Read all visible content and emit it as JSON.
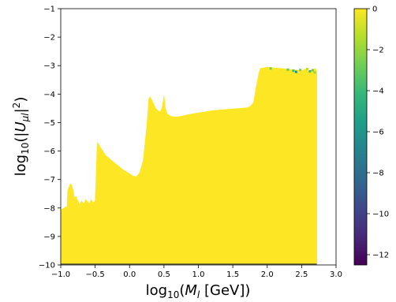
{
  "chart_data": {
    "type": "area",
    "xlim": [
      -1.0,
      3.0
    ],
    "ylim": [
      -10,
      -1
    ],
    "xticks": [
      -1.0,
      -0.5,
      0.0,
      0.5,
      1.0,
      1.5,
      2.0,
      2.5,
      3.0
    ],
    "xtick_labels": [
      "−1.0",
      "−0.5",
      "0.0",
      "0.5",
      "1.0",
      "1.5",
      "2.0",
      "2.5",
      "3.0"
    ],
    "yticks": [
      -1,
      -2,
      -3,
      -4,
      -5,
      -6,
      -7,
      -8,
      -9,
      -10
    ],
    "ytick_labels": [
      "−1",
      "−2",
      "−3",
      "−4",
      "−5",
      "−6",
      "−7",
      "−8",
      "−9",
      "−10"
    ],
    "xlabel": {
      "pre": "log",
      "sub": "10",
      "mid": "(",
      "it": "M",
      "itsub": "l",
      "post": " [GeV])"
    },
    "ylabel": {
      "pre": "log",
      "sub": "10",
      "mid": "(|",
      "it": "U",
      "itsub": "μl",
      "mid2": "|",
      "sup": "2",
      "post": ")"
    },
    "fill_color": "#fde725",
    "grid": false,
    "boundary": {
      "x": [
        -1.0,
        -0.99,
        -0.95,
        -0.93,
        -0.91,
        -0.9,
        -0.88,
        -0.86,
        -0.84,
        -0.82,
        -0.81,
        -0.8,
        -0.78,
        -0.76,
        -0.74,
        -0.72,
        -0.7,
        -0.68,
        -0.66,
        -0.64,
        -0.62,
        -0.6,
        -0.58,
        -0.56,
        -0.54,
        -0.52,
        -0.5,
        -0.49,
        -0.48,
        -0.47,
        -0.45,
        -0.43,
        -0.4,
        -0.35,
        -0.3,
        -0.25,
        -0.2,
        -0.15,
        -0.1,
        -0.05,
        0.0,
        0.05,
        0.1,
        0.15,
        0.2,
        0.25,
        0.28,
        0.3,
        0.32,
        0.35,
        0.38,
        0.4,
        0.42,
        0.45,
        0.48,
        0.5,
        0.52,
        0.55,
        0.58,
        0.6,
        0.65,
        0.7,
        0.8,
        0.9,
        1.0,
        1.1,
        1.2,
        1.3,
        1.4,
        1.5,
        1.6,
        1.7,
        1.75,
        1.8,
        1.82,
        1.85,
        1.88,
        1.9,
        1.95,
        2.0,
        2.1,
        2.2,
        2.3,
        2.4,
        2.5,
        2.55,
        2.6,
        2.65,
        2.7,
        2.72
      ],
      "y": [
        -8.1,
        -8.05,
        -8.0,
        -7.95,
        -8.0,
        -7.4,
        -7.25,
        -7.15,
        -7.2,
        -7.4,
        -7.55,
        -7.65,
        -7.6,
        -7.7,
        -7.8,
        -7.9,
        -7.75,
        -7.8,
        -7.85,
        -7.7,
        -7.75,
        -7.8,
        -7.85,
        -7.7,
        -7.78,
        -7.8,
        -7.75,
        -7.1,
        -6.4,
        -5.7,
        -5.75,
        -5.85,
        -5.95,
        -6.15,
        -6.25,
        -6.35,
        -6.45,
        -6.55,
        -6.65,
        -6.72,
        -6.8,
        -6.88,
        -6.9,
        -6.75,
        -6.3,
        -5.1,
        -4.15,
        -4.1,
        -4.2,
        -4.35,
        -4.5,
        -4.55,
        -4.6,
        -4.62,
        -4.4,
        -4.05,
        -4.5,
        -4.7,
        -4.75,
        -4.78,
        -4.8,
        -4.8,
        -4.75,
        -4.7,
        -4.66,
        -4.62,
        -4.58,
        -4.56,
        -4.54,
        -4.52,
        -4.5,
        -4.48,
        -4.44,
        -4.3,
        -4.05,
        -3.6,
        -3.25,
        -3.1,
        -3.08,
        -3.05,
        -3.08,
        -3.1,
        -3.12,
        -3.15,
        -3.18,
        -3.12,
        -3.2,
        -3.15,
        -3.1,
        -3.2
      ]
    },
    "speckles": {
      "x": [
        2.05,
        2.3,
        2.38,
        2.42,
        2.48,
        2.58,
        2.62,
        2.66,
        2.69
      ],
      "y": [
        -3.1,
        -3.14,
        -3.18,
        -3.22,
        -3.15,
        -3.12,
        -3.2,
        -3.16,
        -3.24
      ],
      "colors": [
        "#6ece58",
        "#5ec962",
        "#3fbc73",
        "#21918c",
        "#7ad151",
        "#b5de2b",
        "#35b779",
        "#5ec962",
        "#90d743"
      ]
    },
    "colorbar": {
      "range": [
        -12.5,
        0
      ],
      "ticks": [
        0,
        -2,
        -4,
        -6,
        -8,
        -10,
        -12
      ],
      "tick_labels": [
        "0",
        "−2",
        "−4",
        "−6",
        "−8",
        "−10",
        "−12"
      ],
      "colormap": "viridis",
      "stops": [
        "#440154",
        "#482878",
        "#3e4989",
        "#31688e",
        "#26828e",
        "#1f9e89",
        "#35b779",
        "#6ece58",
        "#b5de2b",
        "#fde725"
      ]
    }
  }
}
